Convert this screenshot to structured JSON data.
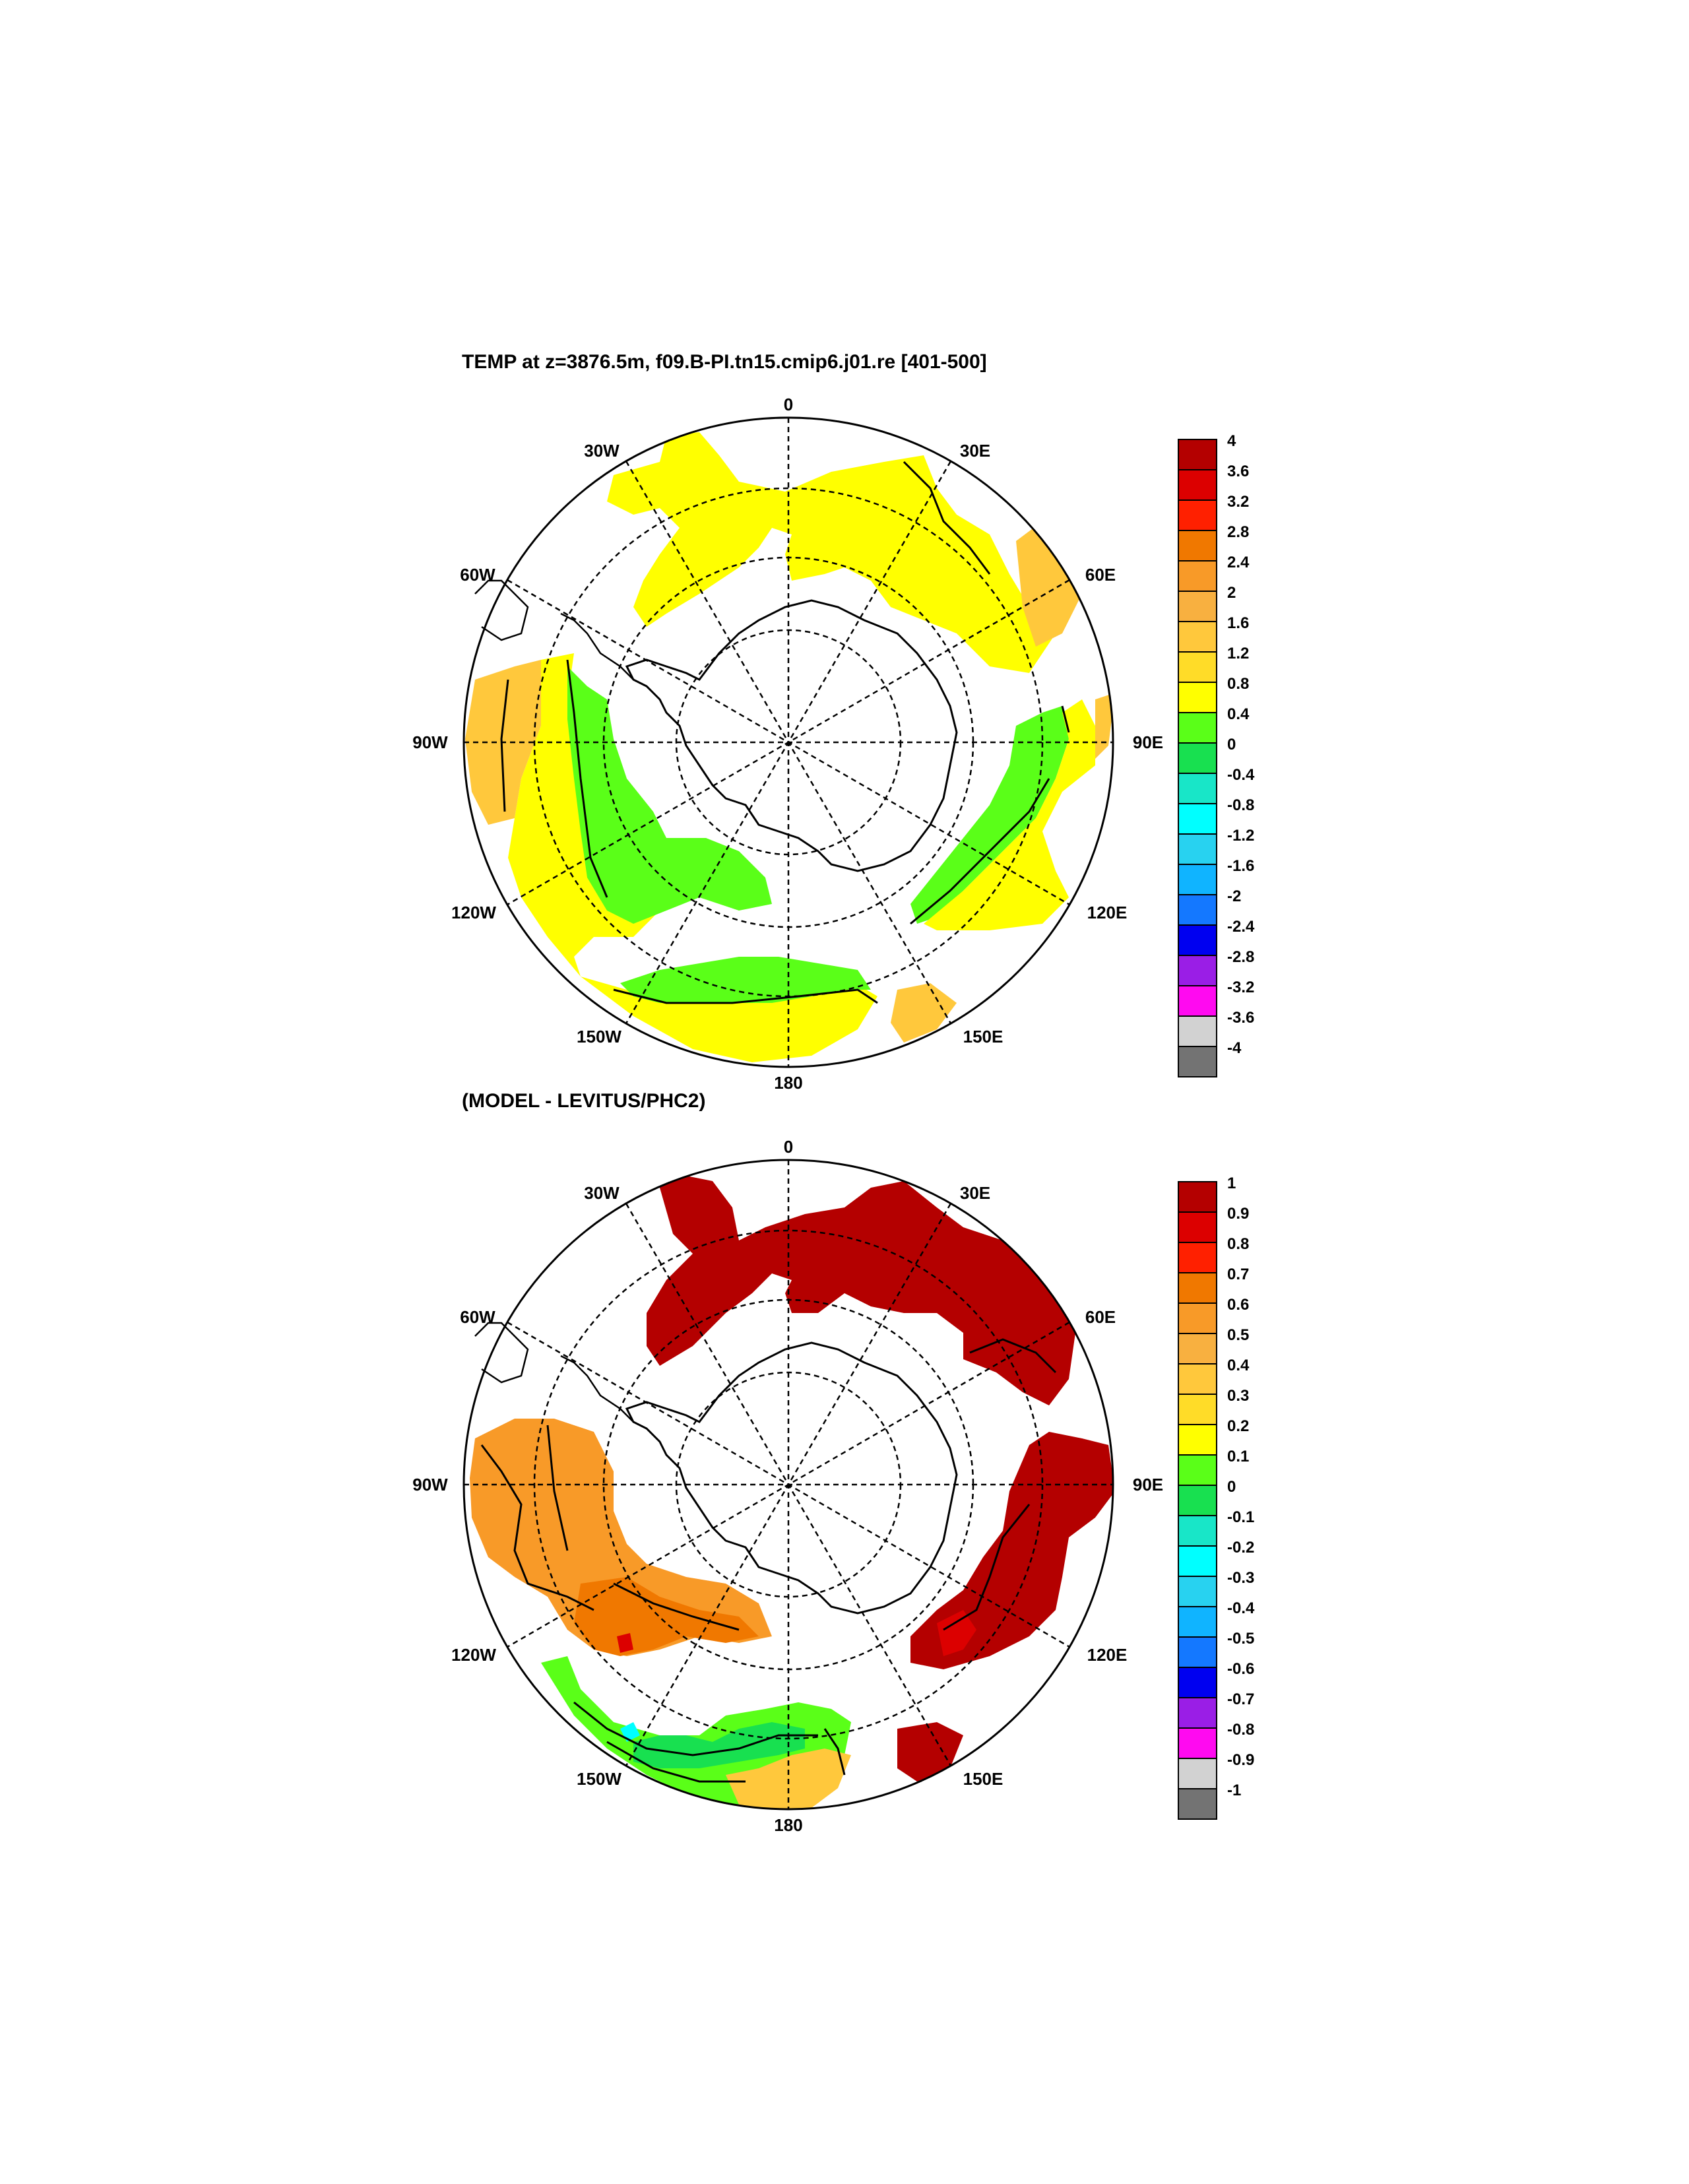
{
  "panel1": {
    "title": "TEMP at z=3876.5m, f09.B-PI.tn15.cmip6.j01.re [401-500]"
  },
  "panel2": {
    "title": "(MODEL - LEVITUS/PHC2)"
  },
  "lon_labels": [
    "0",
    "30E",
    "60E",
    "90E",
    "120E",
    "150E",
    "180",
    "150W",
    "120W",
    "90W",
    "60W",
    "30W"
  ],
  "colorbar1": {
    "labels": [
      "4",
      "3.6",
      "3.2",
      "2.8",
      "2.4",
      "2",
      "1.6",
      "1.2",
      "0.8",
      "0.4",
      "0",
      "-0.4",
      "-0.8",
      "-1.2",
      "-1.6",
      "-2",
      "-2.4",
      "-2.8",
      "-3.2",
      "-3.6",
      "-4"
    ]
  },
  "colorbar2": {
    "labels": [
      "1",
      "0.9",
      "0.8",
      "0.7",
      "0.6",
      "0.5",
      "0.4",
      "0.3",
      "0.2",
      "0.1",
      "0",
      "-0.1",
      "-0.2",
      "-0.3",
      "-0.4",
      "-0.5",
      "-0.6",
      "-0.7",
      "-0.8",
      "-0.9",
      "-1"
    ]
  },
  "colors": {
    "bins_top_to_bottom": [
      "#b40000",
      "#dc0000",
      "#ff2000",
      "#f07800",
      "#f89a28",
      "#f8b040",
      "#ffc83c",
      "#ffdc28",
      "#ffff00",
      "#5aff18",
      "#18e050",
      "#18e6c8",
      "#00ffff",
      "#28d2f0",
      "#10b4ff",
      "#1478ff",
      "#0000f0",
      "#9a1ee6",
      "#ff0af0",
      "#d2d2d2",
      "#737373"
    ],
    "nodata": "#ffffff",
    "contour": "#000000",
    "grid": "#000000"
  }
}
